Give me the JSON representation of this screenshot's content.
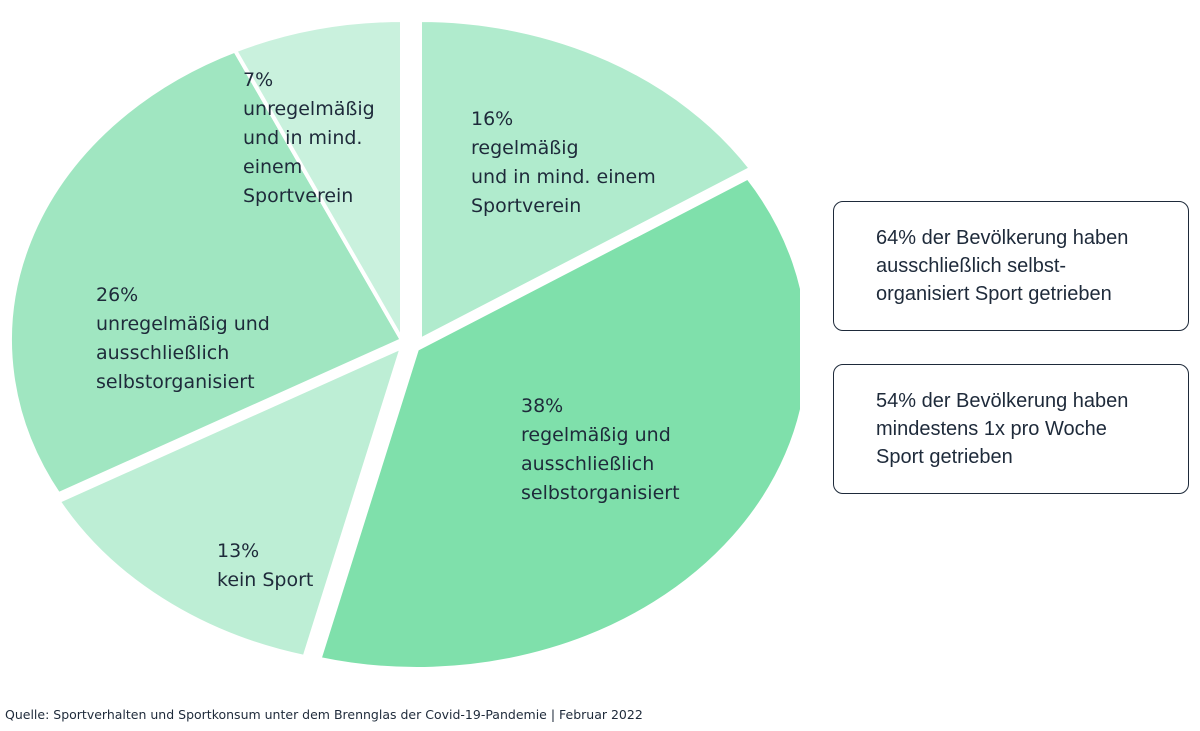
{
  "chart_data": {
    "type": "pie",
    "slices": [
      {
        "label": "regelmäßig und in mind. einem Sportverein",
        "value": 16,
        "pct_text": "16%",
        "lines": [
          "regelmäßig",
          "und in mind. einem",
          "Sportverein"
        ],
        "color": "#b0ebcd"
      },
      {
        "label": "regelmäßig und ausschließlich selbstorganisiert",
        "value": 38,
        "pct_text": "38%",
        "lines": [
          "regelmäßig und",
          "ausschließlich",
          "selbstorganisiert"
        ],
        "color": "#7fe0ab"
      },
      {
        "label": "kein Sport",
        "value": 13,
        "pct_text": "13%",
        "lines": [
          "kein Sport"
        ],
        "color": "#bdeed5"
      },
      {
        "label": "unregelmäßig und ausschließlich selbstorganisiert",
        "value": 26,
        "pct_text": "26%",
        "lines": [
          "unregelmäßig und",
          "ausschließlich",
          "selbstorganisiert"
        ],
        "color": "#a0e6c1"
      },
      {
        "label": "unregelmäßig und in mind. einem Sportverein",
        "value": 7,
        "pct_text": "7%",
        "lines": [
          "unregelmäßig",
          "und in mind.",
          "einem",
          "Sportverein"
        ],
        "color": "#c9f1dd"
      }
    ]
  },
  "info_boxes": [
    {
      "text": "64% der Bevölkerung haben\nausschließlich selbst-\norganisiert Sport getrieben"
    },
    {
      "text": "54% der Bevölkerung haben\nmindestens 1x pro Woche\nSport getrieben"
    }
  ],
  "source": "Quelle: Sportverhalten und Sportkonsum unter dem Brennglas der Covid-19-Pandemie | Februar 2022"
}
